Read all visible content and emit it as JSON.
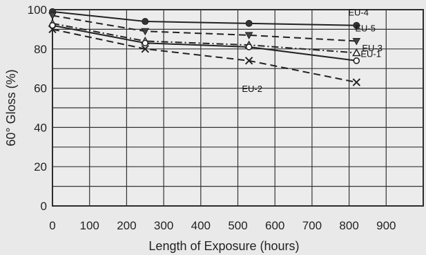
{
  "chart_data": {
    "type": "line",
    "title": "",
    "xlabel": "Length of Exposure (hours)",
    "ylabel": "60° Gloss (%)",
    "xlim": [
      0,
      1000
    ],
    "ylim": [
      0,
      100
    ],
    "xticks": [
      0,
      100,
      200,
      300,
      400,
      500,
      600,
      700,
      800,
      900
    ],
    "yticks": [
      0,
      20,
      40,
      60,
      80,
      100
    ],
    "grid": true,
    "series": [
      {
        "name": "EU-4",
        "marker": "filled-circle",
        "dash": "solid",
        "x": [
          0,
          250,
          530,
          820
        ],
        "y": [
          99,
          94,
          93,
          92
        ]
      },
      {
        "name": "EU-5",
        "marker": "filled-triangle-down",
        "dash": "dashed",
        "x": [
          0,
          250,
          530,
          820
        ],
        "y": [
          97,
          89,
          87,
          84
        ]
      },
      {
        "name": "EU-1",
        "marker": "open-triangle",
        "dash": "dash-dot",
        "x": [
          0,
          250,
          530,
          820
        ],
        "y": [
          93,
          84,
          82,
          78
        ]
      },
      {
        "name": "EU-3",
        "marker": "open-circle",
        "dash": "solid",
        "x": [
          0,
          250,
          530,
          820
        ],
        "y": [
          92,
          83,
          81,
          74
        ]
      },
      {
        "name": "EU-2",
        "marker": "x",
        "dash": "dashed",
        "x": [
          0,
          250,
          530,
          820
        ],
        "y": [
          90,
          80,
          74,
          63
        ]
      }
    ]
  }
}
